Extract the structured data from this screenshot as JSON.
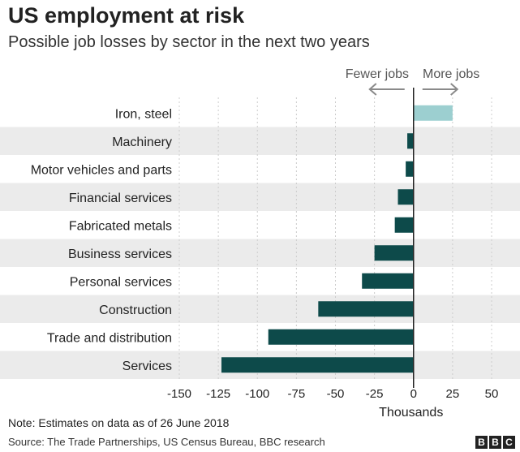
{
  "header": {
    "title": "US employment at risk",
    "subtitle": "Possible job losses by sector in the next two years"
  },
  "footer": {
    "note": "Note: Estimates on data as of 26 June 2018",
    "source": "Source: The Trade Partnerships, US Census Bureau, BBC research",
    "logo_letters": [
      "B",
      "B",
      "C"
    ]
  },
  "chart_data": {
    "type": "bar",
    "orientation": "horizontal",
    "title": "US employment at risk",
    "subtitle": "Possible job losses by sector in the next two years",
    "categories": [
      "Iron, steel",
      "Machinery",
      "Motor vehicles and parts",
      "Financial services",
      "Fabricated metals",
      "Business services",
      "Personal services",
      "Construction",
      "Trade and distribution",
      "Services"
    ],
    "values": [
      25,
      -4,
      -5,
      -10,
      -12,
      -25,
      -33,
      -61,
      -93,
      -123
    ],
    "xlabel": "Thousands",
    "ylabel": "",
    "xlim": [
      -150,
      60
    ],
    "xticks": [
      -150,
      -125,
      -100,
      -75,
      -50,
      -25,
      0,
      25,
      50
    ],
    "xtick_labels": [
      "-150",
      "-125",
      "-100",
      "-75",
      "-50",
      "-25",
      "0",
      "25",
      "50"
    ],
    "grid": "vertical dashed",
    "direction_labels": {
      "negative": "Fewer jobs",
      "positive": "More jobs"
    },
    "colors": {
      "positive": "#9ccfd0",
      "negative": "#0d4a4a",
      "band": "#ebebeb",
      "grid": "#cccccc",
      "axis": "#222222",
      "arrow": "#8a8a8a"
    }
  }
}
